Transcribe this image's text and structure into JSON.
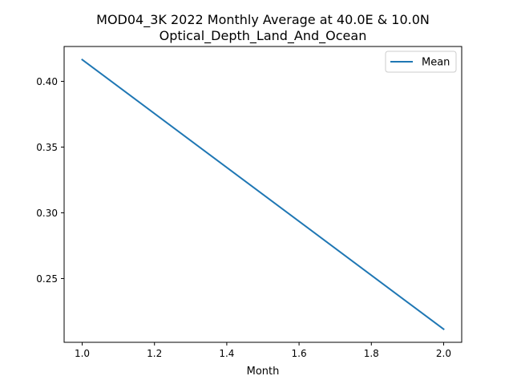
{
  "chart_data": {
    "type": "line",
    "title_line1": "MOD04_3K 2022 Monthly Average at 40.0E & 10.0N",
    "title_line2": "Optical_Depth_Land_And_Ocean",
    "xlabel": "Month",
    "ylabel": "",
    "xlim": [
      0.95,
      2.05
    ],
    "ylim": [
      0.2015,
      0.4265
    ],
    "x_ticks": [
      1.0,
      1.2,
      1.4,
      1.6,
      1.8,
      2.0
    ],
    "x_tick_labels": [
      "1.0",
      "1.2",
      "1.4",
      "1.6",
      "1.8",
      "2.0"
    ],
    "y_ticks": [
      0.25,
      0.3,
      0.35,
      0.4
    ],
    "y_tick_labels": [
      "0.25",
      "0.30",
      "0.35",
      "0.40"
    ],
    "grid": false,
    "legend_position": "top-right",
    "series": [
      {
        "name": "Mean",
        "color": "#1f77b4",
        "x": [
          1.0,
          2.0
        ],
        "y": [
          0.4165,
          0.2115
        ]
      }
    ]
  }
}
